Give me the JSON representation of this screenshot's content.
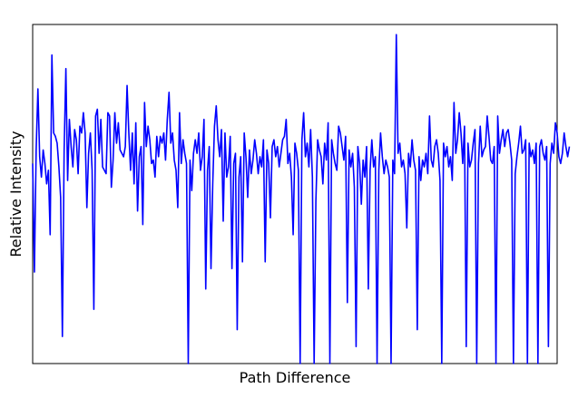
{
  "chart_data": {
    "type": "line",
    "title": "",
    "xlabel": "Path Difference",
    "ylabel": "Relative Intensity",
    "xlim": [
      0,
      300
    ],
    "ylim": [
      0,
      1
    ],
    "grid": false,
    "legend": "none",
    "series": [
      {
        "color": "#0000ff",
        "x_start": 0,
        "x_step": 1,
        "values": [
          0.59,
          0.27,
          0.63,
          0.81,
          0.61,
          0.55,
          0.63,
          0.59,
          0.53,
          0.57,
          0.38,
          0.91,
          0.68,
          0.67,
          0.65,
          0.58,
          0.49,
          0.08,
          0.63,
          0.87,
          0.54,
          0.72,
          0.64,
          0.58,
          0.69,
          0.66,
          0.56,
          0.7,
          0.68,
          0.74,
          0.68,
          0.46,
          0.62,
          0.68,
          0.57,
          0.16,
          0.73,
          0.75,
          0.62,
          0.72,
          0.58,
          0.57,
          0.56,
          0.74,
          0.73,
          0.52,
          0.6,
          0.74,
          0.65,
          0.71,
          0.63,
          0.62,
          0.61,
          0.64,
          0.82,
          0.68,
          0.57,
          0.68,
          0.53,
          0.71,
          0.45,
          0.61,
          0.64,
          0.41,
          0.77,
          0.64,
          0.7,
          0.66,
          0.59,
          0.6,
          0.55,
          0.67,
          0.61,
          0.67,
          0.65,
          0.68,
          0.6,
          0.72,
          0.8,
          0.65,
          0.68,
          0.6,
          0.57,
          0.46,
          0.74,
          0.59,
          0.66,
          0.62,
          0.59,
          0.67,
          0.6,
          0.51,
          0.62,
          0.66,
          0.62,
          0.68,
          0.57,
          0.61,
          0.72,
          0.69,
          0.57,
          0.64,
          0.28,
          0.53,
          0.7,
          0.76,
          0.66,
          0.61,
          0.69,
          0.42,
          0.68,
          0.55,
          0.58,
          0.67,
          0.64,
          0.59,
          0.62,
          0.65,
          0.55,
          0.61,
          0.43,
          0.68,
          0.61,
          0.49,
          0.63,
          0.56,
          0.6,
          0.66,
          0.62,
          0.56,
          0.61,
          0.58,
          0.66,
          0.67,
          0.63,
          0.59,
          0.43,
          0.64,
          0.66,
          0.61,
          0.64,
          0.58,
          0.62,
          0.66,
          0.67,
          0.72,
          0.59,
          0.62,
          0.55,
          0.61,
          0.65,
          0.62,
          0.57,
          0.64,
          0.66,
          0.74,
          0.61,
          0.65,
          0.58,
          0.69,
          0.55,
          0.62,
          0.48,
          0.66,
          0.63,
          0.61,
          0.53,
          0.65,
          0.6,
          0.71,
          0.69,
          0.66,
          0.62,
          0.59,
          0.57,
          0.7,
          0.68,
          0.64,
          0.6,
          0.67,
          0.66,
          0.63,
          0.58,
          0.62,
          0.52,
          0.65,
          0.64,
          0.59,
          0.47,
          0.6,
          0.55,
          0.64,
          0.61,
          0.57,
          0.66,
          0.58,
          0.61,
          0.69,
          0.57,
          0.68,
          0.61,
          0.56,
          0.6,
          0.58,
          0.55,
          0.67,
          0.6,
          0.56,
          0.97,
          0.62,
          0.65,
          0.58,
          0.6,
          0.56,
          0.64,
          0.62,
          0.58,
          0.66,
          0.6,
          0.57,
          0.63,
          0.61,
          0.54,
          0.6,
          0.58,
          0.62,
          0.56,
          0.73,
          0.6,
          0.58,
          0.64,
          0.66,
          0.62,
          0.54,
          0.6,
          0.65,
          0.61,
          0.64,
          0.58,
          0.61,
          0.54,
          0.77,
          0.62,
          0.66,
          0.74,
          0.68,
          0.59,
          0.7,
          0.64,
          0.65,
          0.58,
          0.6,
          0.65,
          0.69,
          0.63,
          0.59,
          0.7,
          0.61,
          0.63,
          0.64,
          0.73,
          0.67,
          0.6,
          0.59,
          0.64,
          0.58,
          0.73,
          0.62,
          0.66,
          0.69,
          0.64,
          0.68,
          0.69,
          0.65,
          0.6,
          0.73,
          0.56,
          0.61,
          0.65,
          0.7,
          0.62,
          0.63,
          0.66,
          0.71,
          0.65,
          0.61,
          0.63,
          0.59,
          0.65,
          0.63,
          0.64,
          0.66,
          0.62,
          0.6,
          0.64,
          0.69,
          0.59,
          0.65,
          0.62,
          0.71,
          0.68,
          0.61,
          0.59,
          0.62,
          0.68,
          0.64,
          0.61,
          0.64
        ]
      }
    ],
    "dips": [
      {
        "x": 89,
        "y": 0.0
      },
      {
        "x": 99,
        "y": 0.22
      },
      {
        "x": 114,
        "y": 0.28
      },
      {
        "x": 117,
        "y": 0.1
      },
      {
        "x": 120,
        "y": 0.3
      },
      {
        "x": 133,
        "y": 0.3
      },
      {
        "x": 149,
        "y": 0.38
      },
      {
        "x": 170,
        "y": 0.0
      },
      {
        "x": 192,
        "y": 0.22
      },
      {
        "x": 197,
        "y": 0.0
      },
      {
        "x": 205,
        "y": 0.0
      },
      {
        "x": 214,
        "y": 0.4
      },
      {
        "x": 220,
        "y": 0.1
      },
      {
        "x": 234,
        "y": 0.0
      },
      {
        "x": 248,
        "y": 0.05
      },
      {
        "x": 254,
        "y": 0.0
      },
      {
        "x": 265,
        "y": 0.0
      },
      {
        "x": 275,
        "y": 0.0
      },
      {
        "x": 283,
        "y": 0.0
      },
      {
        "x": 289,
        "y": 0.0
      },
      {
        "x": 295,
        "y": 0.05
      },
      {
        "x": 153,
        "y": 0.0
      },
      {
        "x": 161,
        "y": 0.0
      },
      {
        "x": 180,
        "y": 0.18
      },
      {
        "x": 185,
        "y": 0.05
      }
    ]
  }
}
